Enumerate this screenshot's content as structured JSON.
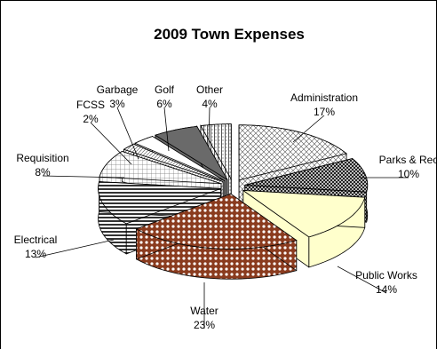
{
  "chart_data": {
    "type": "pie",
    "title": "2009 Town Expenses",
    "style": "3d-exploded",
    "labels_show": [
      "name",
      "percent"
    ],
    "legend": "none",
    "slices": [
      {
        "name": "Administration",
        "percent": "17%",
        "value": 17,
        "fill": "crosshatch-light"
      },
      {
        "name": "Parks & Rec",
        "percent": "10%",
        "value": 10,
        "fill": "checker-dark"
      },
      {
        "name": "Public Works",
        "percent": "14%",
        "value": 14,
        "fill": "cream-solid"
      },
      {
        "name": "Water",
        "percent": "23%",
        "value": 23,
        "fill": "brick-dots"
      },
      {
        "name": "Electrical",
        "percent": "13%",
        "value": 13,
        "fill": "horizontal-stripes"
      },
      {
        "name": "Requisition",
        "percent": "8%",
        "value": 8,
        "fill": "grid-light"
      },
      {
        "name": "FCSS",
        "percent": "2%",
        "value": 2,
        "fill": "diagonal-light"
      },
      {
        "name": "Garbage",
        "percent": "3%",
        "value": 3,
        "fill": "white"
      },
      {
        "name": "Golf",
        "percent": "6%",
        "value": 6,
        "fill": "dark-gray"
      },
      {
        "name": "Other",
        "percent": "4%",
        "value": 4,
        "fill": "vertical-dots"
      }
    ]
  }
}
